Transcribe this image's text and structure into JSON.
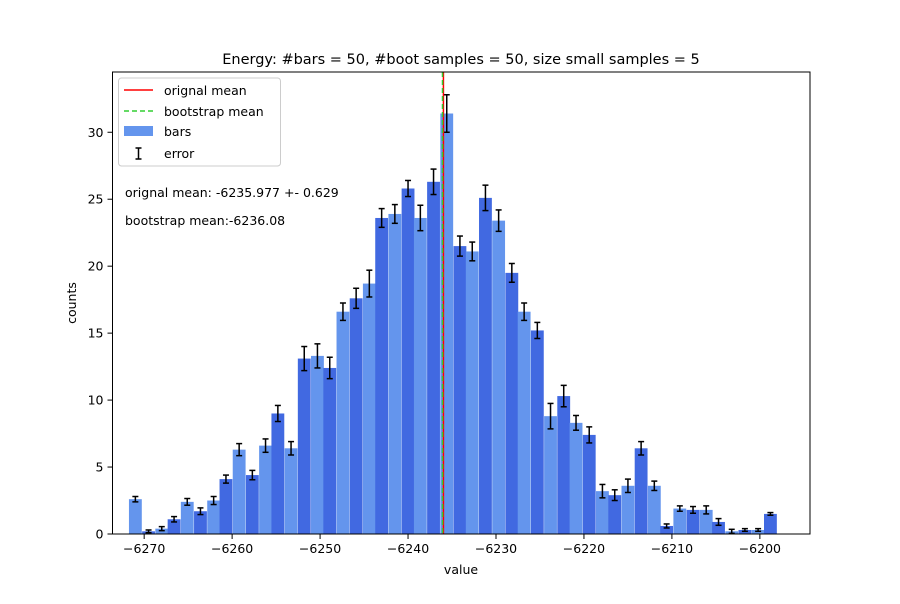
{
  "chart_data": {
    "type": "bar",
    "title": "Energy: #bars = 50, #boot samples = 50, size small samples = 5",
    "xlabel": "value",
    "ylabel": "counts",
    "xlim": [
      -6273.6,
      -6194.3
    ],
    "ylim": [
      0,
      34.5
    ],
    "xticks": [
      -6270,
      -6260,
      -6250,
      -6240,
      -6230,
      -6220,
      -6210,
      -6200
    ],
    "xtick_labels": [
      "−6270",
      "−6260",
      "−6250",
      "−6240",
      "−6230",
      "−6220",
      "−6210",
      "−6200"
    ],
    "yticks": [
      0,
      5,
      10,
      15,
      20,
      25,
      30
    ],
    "bar_width": 1.46,
    "colors": {
      "bars_light": "#6495ed",
      "bars_dark": "#4169e1",
      "original_mean": "#ff0000",
      "bootstrap_mean": "#32cd32",
      "error": "#000000"
    },
    "legend": {
      "position": "upper-left",
      "items": [
        {
          "label": "orignal mean",
          "kind": "solid-line"
        },
        {
          "label": "bootstrap mean",
          "kind": "dashed-line"
        },
        {
          "label": "bars",
          "kind": "patch"
        },
        {
          "label": "error",
          "kind": "errorbar"
        }
      ]
    },
    "annotations": [
      "orignal mean: -6235.977 +- 0.629",
      "bootstrap mean:-6236.08"
    ],
    "original_mean": -6235.977,
    "bootstrap_mean": -6236.08,
    "series": [
      {
        "name": "bars",
        "x": [
          -6271.0,
          -6269.5,
          -6268.0,
          -6266.6,
          -6265.1,
          -6263.6,
          -6262.1,
          -6260.7,
          -6259.2,
          -6257.7,
          -6256.2,
          -6254.8,
          -6253.3,
          -6251.8,
          -6250.3,
          -6248.9,
          -6247.4,
          -6245.9,
          -6244.4,
          -6243.0,
          -6241.5,
          -6240.0,
          -6238.6,
          -6237.1,
          -6235.6,
          -6234.1,
          -6232.7,
          -6231.2,
          -6229.7,
          -6228.2,
          -6226.8,
          -6225.3,
          -6223.8,
          -6222.3,
          -6220.9,
          -6219.4,
          -6217.9,
          -6216.5,
          -6215.0,
          -6213.5,
          -6212.0,
          -6210.6,
          -6209.1,
          -6207.6,
          -6206.1,
          -6204.7,
          -6203.2,
          -6201.7,
          -6200.2,
          -6198.8
        ],
        "values": [
          2.6,
          0.2,
          0.4,
          1.1,
          2.4,
          1.7,
          2.5,
          4.1,
          6.3,
          4.4,
          6.6,
          9.0,
          6.4,
          13.1,
          13.3,
          12.4,
          16.6,
          17.6,
          18.7,
          23.6,
          23.9,
          25.8,
          23.6,
          26.3,
          31.4,
          21.5,
          21.1,
          25.1,
          23.4,
          19.5,
          16.6,
          15.2,
          8.8,
          10.3,
          8.3,
          7.4,
          3.2,
          2.9,
          3.6,
          6.4,
          3.6,
          0.6,
          1.9,
          1.8,
          1.8,
          0.9,
          0.2,
          0.3,
          0.3,
          1.5
        ],
        "errors": [
          0.2,
          0.1,
          0.15,
          0.2,
          0.25,
          0.25,
          0.3,
          0.3,
          0.45,
          0.35,
          0.5,
          0.6,
          0.5,
          0.9,
          0.9,
          0.8,
          0.65,
          0.75,
          1.0,
          0.7,
          0.7,
          0.6,
          0.95,
          0.95,
          1.4,
          0.75,
          0.7,
          0.95,
          0.8,
          0.7,
          0.65,
          0.6,
          0.95,
          0.8,
          0.55,
          0.6,
          0.5,
          0.4,
          0.5,
          0.5,
          0.35,
          0.15,
          0.2,
          0.25,
          0.3,
          0.25,
          0.15,
          0.1,
          0.1,
          0.1
        ]
      }
    ]
  }
}
